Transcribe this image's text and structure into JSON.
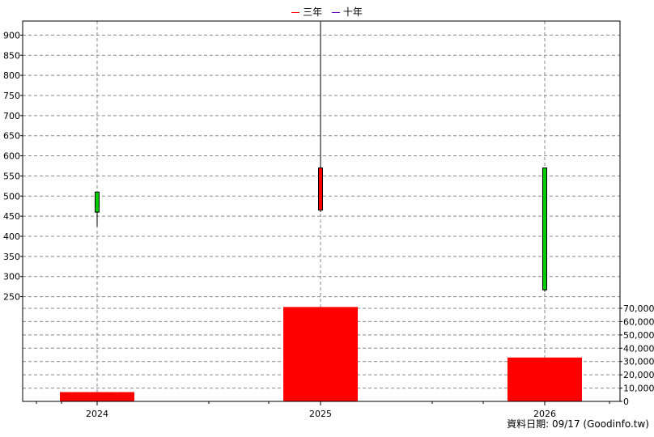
{
  "legend": [
    {
      "label": "三年",
      "color": "#ff0000"
    },
    {
      "label": "十年",
      "color": "#6600cc"
    }
  ],
  "source_label": "資料日期: 09/17  (Goodinfo.tw)",
  "chart_data": [
    {
      "type": "candlestick",
      "categories": [
        "2024",
        "2025",
        "2026"
      ],
      "ylim": [
        225,
        935
      ],
      "yticks": [
        250,
        300,
        350,
        400,
        450,
        500,
        550,
        600,
        650,
        700,
        750,
        800,
        850,
        900
      ],
      "grid": true,
      "candles": [
        {
          "x": "2024",
          "open": 510,
          "high": 510,
          "low": 425,
          "close": 460,
          "color": "#00cc00"
        },
        {
          "x": "2025",
          "open": 465,
          "high": 933,
          "low": 460,
          "close": 570,
          "color": "#ff0000"
        },
        {
          "x": "2026",
          "open": 570,
          "high": 570,
          "low": 262,
          "close": 267,
          "color": "#00cc00"
        }
      ]
    },
    {
      "type": "bar",
      "categories": [
        "2024",
        "2025",
        "2026"
      ],
      "values": [
        7000,
        71000,
        33000
      ],
      "color": "#ff0000",
      "ylim": [
        0,
        70000
      ],
      "yticks": [
        0,
        10000,
        20000,
        30000,
        40000,
        50000,
        60000,
        70000
      ],
      "ytick_labels": [
        "0",
        "10,000",
        "20,000",
        "30,000",
        "40,000",
        "50,000",
        "60,000",
        "70,000"
      ],
      "grid": true
    }
  ]
}
